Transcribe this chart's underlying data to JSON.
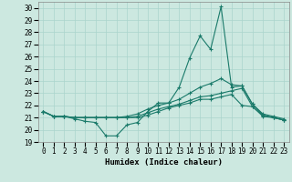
{
  "xlabel": "Humidex (Indice chaleur)",
  "background_color": "#cce8e0",
  "grid_color": "#aad4cc",
  "line_color": "#1a7a6a",
  "xlim": [
    -0.5,
    23.5
  ],
  "ylim": [
    19,
    30.5
  ],
  "yticks": [
    19,
    20,
    21,
    22,
    23,
    24,
    25,
    26,
    27,
    28,
    29,
    30
  ],
  "xticks": [
    0,
    1,
    2,
    3,
    4,
    5,
    6,
    7,
    8,
    9,
    10,
    11,
    12,
    13,
    14,
    15,
    16,
    17,
    18,
    19,
    20,
    21,
    22,
    23
  ],
  "series": [
    [
      21.5,
      21.1,
      21.1,
      20.9,
      20.7,
      20.6,
      19.5,
      19.5,
      20.4,
      20.6,
      21.5,
      22.2,
      22.2,
      23.5,
      25.9,
      27.7,
      26.6,
      30.1,
      23.5,
      23.6,
      22.1,
      21.2,
      21.0,
      20.8
    ],
    [
      21.5,
      21.1,
      21.1,
      21.0,
      21.0,
      21.0,
      21.0,
      21.0,
      21.0,
      21.1,
      21.4,
      21.7,
      21.9,
      22.1,
      22.4,
      22.7,
      22.8,
      23.0,
      23.2,
      23.4,
      21.9,
      21.2,
      21.0,
      20.8
    ],
    [
      21.5,
      21.1,
      21.1,
      21.0,
      21.0,
      21.0,
      21.0,
      21.0,
      21.1,
      21.3,
      21.7,
      22.0,
      22.2,
      22.5,
      23.0,
      23.5,
      23.8,
      24.2,
      23.7,
      23.6,
      22.1,
      21.3,
      21.1,
      20.9
    ],
    [
      21.5,
      21.1,
      21.1,
      21.0,
      21.0,
      21.0,
      21.0,
      21.0,
      21.0,
      21.0,
      21.2,
      21.5,
      21.8,
      22.0,
      22.2,
      22.5,
      22.5,
      22.7,
      22.9,
      22.0,
      21.9,
      21.1,
      21.0,
      20.8
    ]
  ]
}
